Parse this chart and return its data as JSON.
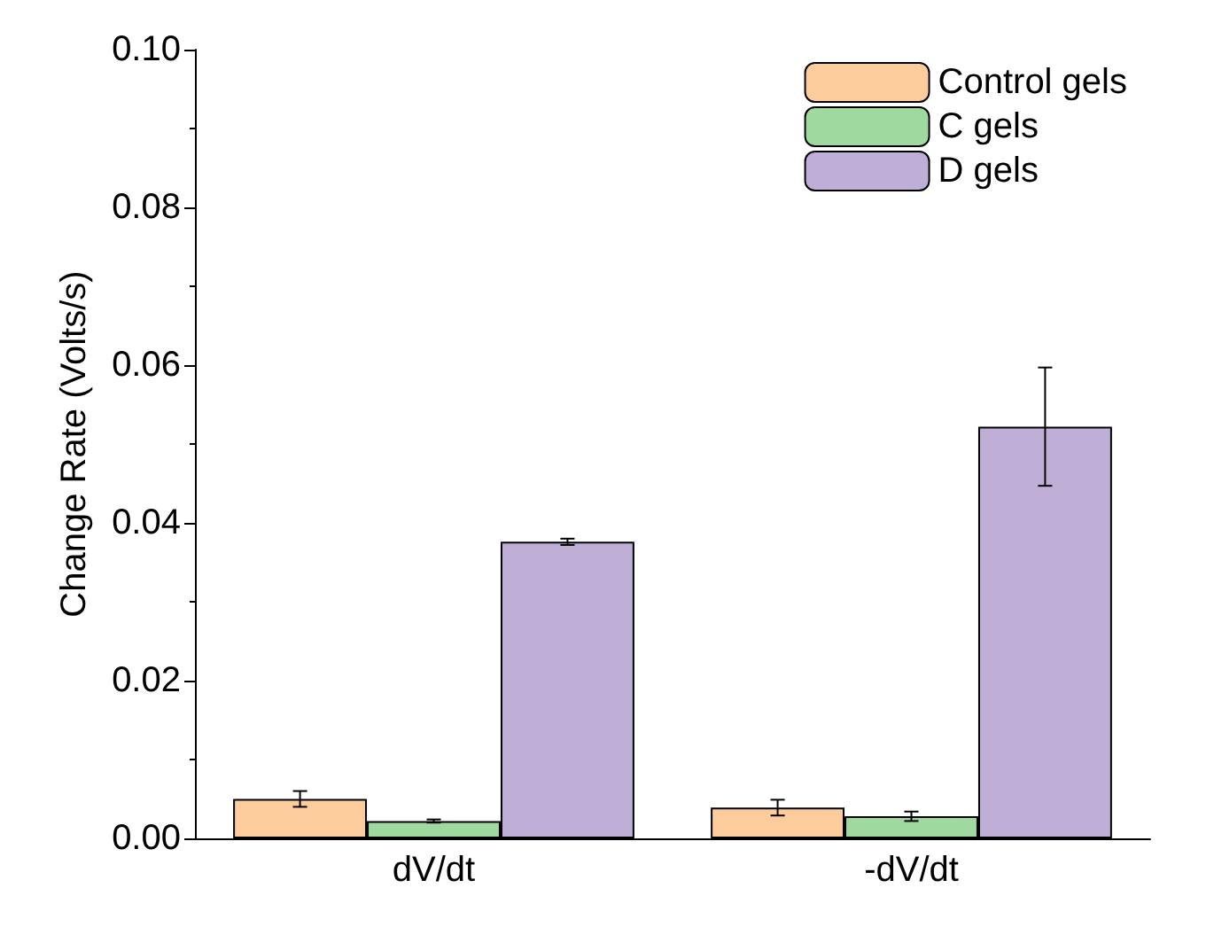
{
  "chart_data": {
    "type": "bar",
    "ylabel": "Change Rate (Volts/s)",
    "categories": [
      "dV/dt",
      "-dV/dt"
    ],
    "series": [
      {
        "name": "Control gels",
        "color": "#fdcc9c",
        "values": [
          0.005,
          0.0039
        ],
        "errors": [
          0.001,
          0.001
        ]
      },
      {
        "name": "C gels",
        "color": "#9fd9a0",
        "values": [
          0.0022,
          0.0028
        ],
        "errors": [
          0.0002,
          0.0006
        ]
      },
      {
        "name": "D gels",
        "color": "#bfafd7",
        "values": [
          0.0376,
          0.0522
        ],
        "errors": [
          0.0004,
          0.0075
        ]
      }
    ],
    "ylim": [
      0,
      0.1
    ],
    "yticks": [
      {
        "value": 0,
        "label": "0.00"
      },
      {
        "value": 0.02,
        "label": "0.02"
      },
      {
        "value": 0.04,
        "label": "0.04"
      },
      {
        "value": 0.06,
        "label": "0.06"
      },
      {
        "value": 0.08,
        "label": "0.08"
      },
      {
        "value": 0.1,
        "label": "0.10"
      }
    ],
    "grid": false,
    "legend": "top right"
  }
}
